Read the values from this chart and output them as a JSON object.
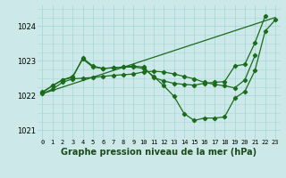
{
  "title": "Graphe pression niveau de la mer (hPa)",
  "bg_color": "#cce8e8",
  "line_color": "#1a6b1a",
  "grid_color": "#a8d8d8",
  "xlim": [
    -0.5,
    23.5
  ],
  "ylim": [
    1020.75,
    1024.6
  ],
  "yticks": [
    1021,
    1022,
    1023,
    1024
  ],
  "ylabel_fontsize": 6.5,
  "xlabel_fontsize": 7.0,
  "xtick_labels": [
    "0",
    "1",
    "2",
    "3",
    "4",
    "5",
    "6",
    "7",
    "8",
    "9",
    "10",
    "11",
    "12",
    "13",
    "14",
    "15",
    "16",
    "17",
    "18",
    "19",
    "20",
    "21",
    "22",
    "23"
  ],
  "line1_x": [
    0,
    1,
    2,
    3,
    4,
    5,
    6,
    7,
    8,
    9,
    10,
    11,
    12,
    13,
    14,
    15,
    16,
    17,
    18,
    19,
    20,
    21,
    22
  ],
  "line1_y": [
    1022.1,
    1022.28,
    1022.45,
    1022.55,
    1023.05,
    1022.82,
    1022.78,
    1022.8,
    1022.82,
    1022.85,
    1022.82,
    1022.52,
    1022.42,
    1022.35,
    1022.32,
    1022.3,
    1022.35,
    1022.38,
    1022.4,
    1022.85,
    1022.9,
    1023.52,
    1024.28
  ],
  "line2_x": [
    0,
    1,
    2,
    3,
    4,
    5,
    6,
    7,
    8,
    9,
    10,
    11,
    12,
    13,
    14,
    15,
    16,
    17,
    18,
    19,
    20,
    21,
    22,
    23
  ],
  "line2_y": [
    1022.08,
    1022.28,
    1022.45,
    1022.52,
    1023.08,
    1022.85,
    1022.78,
    1022.8,
    1022.82,
    1022.82,
    1022.78,
    1022.55,
    1022.28,
    1021.98,
    1021.48,
    1021.28,
    1021.35,
    1021.35,
    1021.38,
    1021.92,
    1022.12,
    1022.72,
    1023.85,
    1024.18
  ],
  "line3_x": [
    0,
    1,
    2,
    3,
    4,
    5,
    6,
    7,
    8,
    9,
    10,
    11,
    12,
    13,
    14,
    15,
    16,
    17,
    18,
    19,
    20,
    21
  ],
  "line3_y": [
    1022.05,
    1022.18,
    1022.38,
    1022.48,
    1022.5,
    1022.52,
    1022.55,
    1022.58,
    1022.6,
    1022.62,
    1022.68,
    1022.7,
    1022.68,
    1022.62,
    1022.55,
    1022.48,
    1022.38,
    1022.32,
    1022.28,
    1022.22,
    1022.45,
    1023.15
  ],
  "line4_x": [
    0,
    23
  ],
  "line4_y": [
    1022.05,
    1024.25
  ]
}
